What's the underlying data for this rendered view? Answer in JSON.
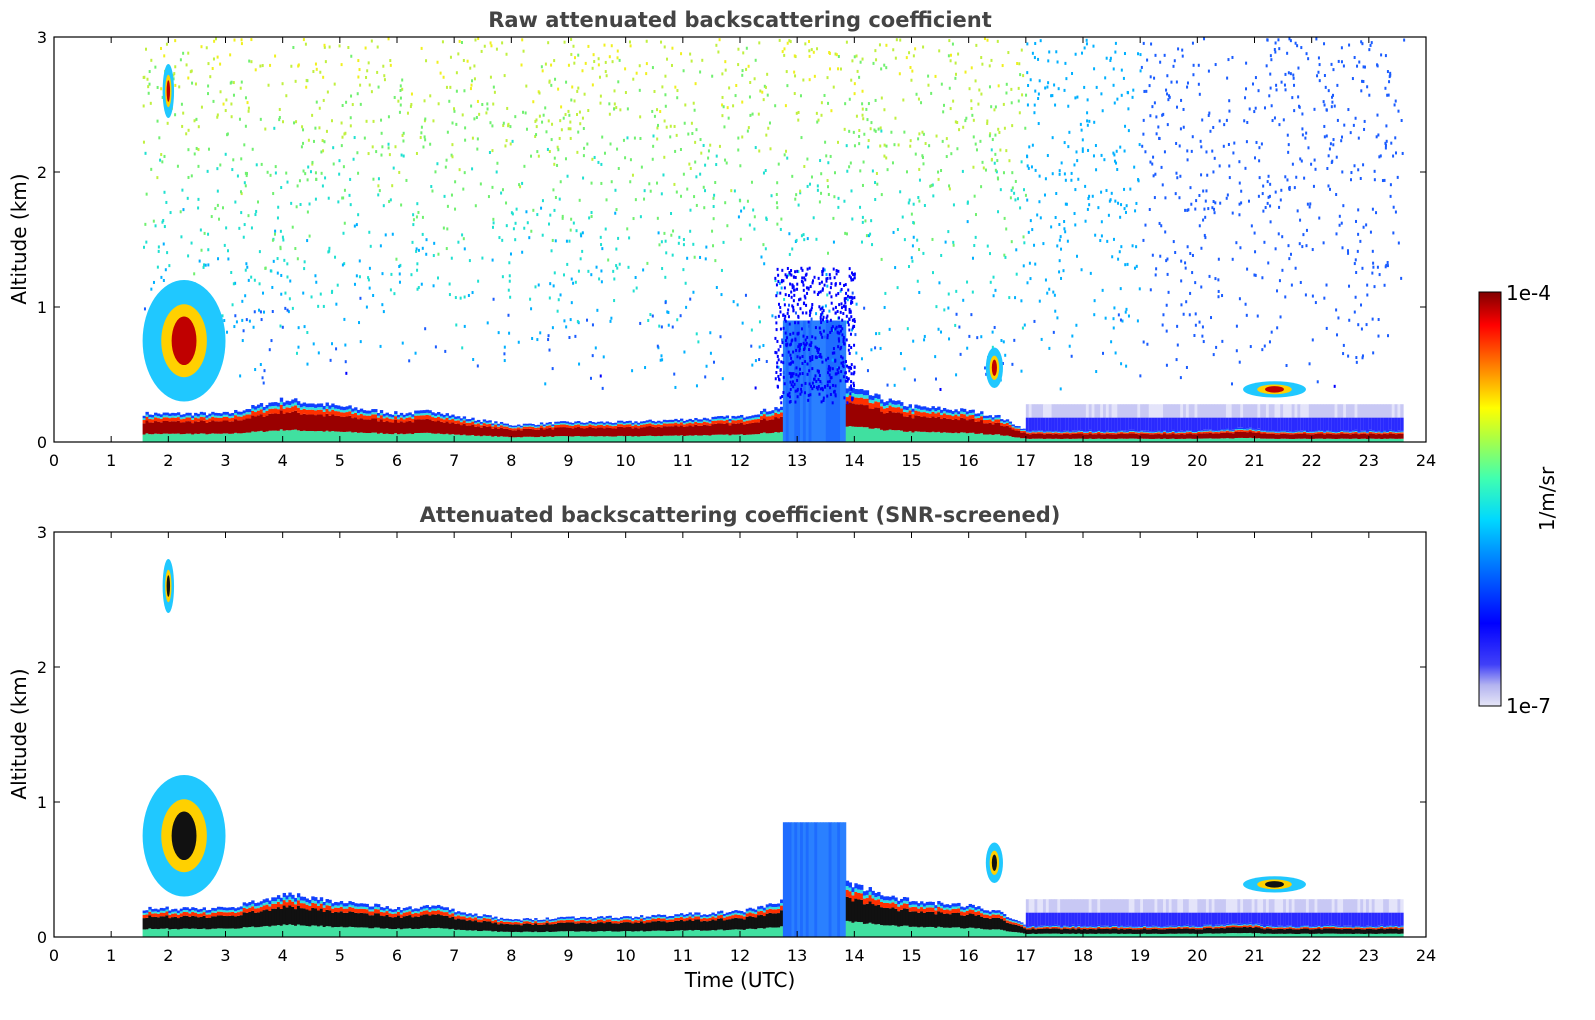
{
  "chart_data": [
    {
      "type": "heatmap",
      "title": "Raw attenuated backscattering coefficient",
      "xlabel": "",
      "ylabel": "Altitude (km)",
      "xlim": [
        0,
        24
      ],
      "ylim": [
        0,
        3
      ],
      "xticks": [
        "0",
        "1",
        "2",
        "3",
        "4",
        "5",
        "6",
        "7",
        "8",
        "9",
        "10",
        "11",
        "12",
        "13",
        "14",
        "15",
        "16",
        "17",
        "18",
        "19",
        "20",
        "21",
        "22",
        "23",
        "24"
      ],
      "yticks": [
        "0",
        "1",
        "2",
        "3"
      ],
      "data_start_hour": 1.55,
      "data_end_hour": 23.6,
      "mixing_layer_top_km": [
        [
          1.6,
          0.2
        ],
        [
          2,
          0.2
        ],
        [
          3,
          0.2
        ],
        [
          3.5,
          0.25
        ],
        [
          4,
          0.3
        ],
        [
          5,
          0.25
        ],
        [
          6,
          0.2
        ],
        [
          6.7,
          0.22
        ],
        [
          7,
          0.18
        ],
        [
          8,
          0.12
        ],
        [
          9,
          0.14
        ],
        [
          10,
          0.14
        ],
        [
          11,
          0.16
        ],
        [
          12,
          0.18
        ],
        [
          12.7,
          0.25
        ],
        [
          13.9,
          0.38
        ],
        [
          14.5,
          0.3
        ],
        [
          15,
          0.25
        ],
        [
          16,
          0.22
        ],
        [
          16.5,
          0.18
        ],
        [
          17,
          0.08
        ],
        [
          18,
          0.08
        ],
        [
          19,
          0.08
        ],
        [
          20,
          0.08
        ],
        [
          20.9,
          0.1
        ],
        [
          21.2,
          0.08
        ],
        [
          22,
          0.08
        ],
        [
          23,
          0.08
        ],
        [
          23.6,
          0.08
        ]
      ],
      "clouds": [
        {
          "hours": [
            1.9,
            2.1
          ],
          "altitude_km": [
            2.4,
            2.8
          ]
        },
        {
          "hours": [
            1.55,
            3.0
          ],
          "altitude_km": [
            0.3,
            1.2
          ]
        },
        {
          "hours": [
            16.3,
            16.6
          ],
          "altitude_km": [
            0.4,
            0.7
          ]
        },
        {
          "hours": [
            20.8,
            21.9
          ],
          "altitude_km": [
            0.33,
            0.45
          ]
        }
      ],
      "rain_or_fog_block": {
        "hours": [
          12.75,
          13.85
        ],
        "altitude_km": [
          0,
          0.9
        ]
      }
    },
    {
      "type": "heatmap",
      "title": "Attenuated backscattering coefficient (SNR-screened)",
      "xlabel": "Time (UTC)",
      "ylabel": "Altitude (km)",
      "xlim": [
        0,
        24
      ],
      "ylim": [
        0,
        3
      ],
      "xticks": [
        "0",
        "1",
        "2",
        "3",
        "4",
        "5",
        "6",
        "7",
        "8",
        "9",
        "10",
        "11",
        "12",
        "13",
        "14",
        "15",
        "16",
        "17",
        "18",
        "19",
        "20",
        "21",
        "22",
        "23",
        "24"
      ],
      "yticks": [
        "0",
        "1",
        "2",
        "3"
      ],
      "data_start_hour": 1.55,
      "data_end_hour": 23.6,
      "mixing_layer_top_km": [
        [
          1.6,
          0.2
        ],
        [
          2,
          0.2
        ],
        [
          3,
          0.2
        ],
        [
          3.5,
          0.25
        ],
        [
          4,
          0.3
        ],
        [
          5,
          0.25
        ],
        [
          6,
          0.2
        ],
        [
          6.7,
          0.22
        ],
        [
          7,
          0.18
        ],
        [
          8,
          0.12
        ],
        [
          9,
          0.14
        ],
        [
          10,
          0.14
        ],
        [
          11,
          0.16
        ],
        [
          12,
          0.18
        ],
        [
          12.7,
          0.25
        ],
        [
          13.9,
          0.38
        ],
        [
          14.5,
          0.3
        ],
        [
          15,
          0.25
        ],
        [
          16,
          0.22
        ],
        [
          16.5,
          0.18
        ],
        [
          17,
          0.08
        ],
        [
          18,
          0.08
        ],
        [
          19,
          0.08
        ],
        [
          20,
          0.08
        ],
        [
          20.9,
          0.1
        ],
        [
          21.2,
          0.08
        ],
        [
          22,
          0.08
        ],
        [
          23,
          0.08
        ],
        [
          23.6,
          0.08
        ]
      ],
      "clouds": [
        {
          "hours": [
            1.9,
            2.1
          ],
          "altitude_km": [
            2.4,
            2.8
          ]
        },
        {
          "hours": [
            1.55,
            3.0
          ],
          "altitude_km": [
            0.3,
            1.2
          ]
        },
        {
          "hours": [
            16.3,
            16.6
          ],
          "altitude_km": [
            0.4,
            0.7
          ]
        },
        {
          "hours": [
            20.8,
            21.9
          ],
          "altitude_km": [
            0.33,
            0.45
          ]
        }
      ],
      "rain_or_fog_block": {
        "hours": [
          12.75,
          13.85
        ],
        "altitude_km": [
          0,
          0.85
        ]
      }
    }
  ],
  "colorbar": {
    "label": "1/m/sr",
    "min_label": "1e-7",
    "max_label": "1e-4",
    "colormap": "jet",
    "scale": "log"
  }
}
